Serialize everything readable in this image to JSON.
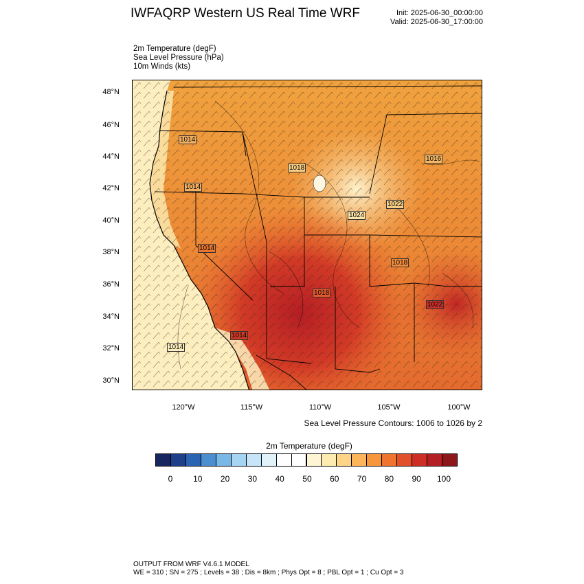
{
  "header": {
    "title": "IWFAQRP Western US Real Time WRF",
    "init": "Init: 2025-06-30_00:00:00",
    "valid": "Valid: 2025-06-30_17:00:00"
  },
  "fields": {
    "temperature": "2m Temperature   (degF)",
    "pressure": "Sea Level Pressure   (hPa)",
    "winds": "10m Winds   (kts)"
  },
  "map": {
    "lat_labels": [
      "48°N",
      "46°N",
      "44°N",
      "42°N",
      "40°N",
      "38°N",
      "36°N",
      "34°N",
      "32°N",
      "30°N"
    ],
    "lon_labels": [
      "120°W",
      "115°W",
      "110°W",
      "105°W",
      "100°W"
    ],
    "pressure_labels": [
      "1014",
      "1014",
      "1014",
      "1016",
      "1018",
      "1018",
      "1018",
      "1024",
      "1022",
      "1022",
      "1014",
      "1014"
    ],
    "colors": {
      "ocean": "#fdeec0",
      "land_warm": "#f0a03c",
      "land_hot": "#d83a28",
      "land_cool": "#fce4a8"
    }
  },
  "contour_note": "Sea Level Pressure Contours: 1006 to 1026 by 2",
  "colorbar": {
    "title": "2m Temperature  (degF)",
    "colors": [
      "#17265f",
      "#1f3f8a",
      "#2b63b3",
      "#4b8fd0",
      "#79b7e6",
      "#a6d5f4",
      "#c6e5f8",
      "#e2f2fb",
      "#ffffff",
      "#ffffff",
      "#fef5d4",
      "#feebb0",
      "#fed486",
      "#fcb55a",
      "#f8963c",
      "#ef7430",
      "#e1502a",
      "#cd2f25",
      "#b51e24",
      "#8e1819"
    ],
    "ticks": [
      "0",
      "10",
      "20",
      "30",
      "40",
      "50",
      "60",
      "70",
      "80",
      "90",
      "100"
    ]
  },
  "footer": {
    "line1": "OUTPUT FROM WRF V4.6.1 MODEL",
    "line2": "WE = 310 ; SN = 275 ; Levels = 38 ; Dis = 8km ; Phys Opt = 8 ; PBL Opt = 1 ; Cu Opt = 3"
  }
}
